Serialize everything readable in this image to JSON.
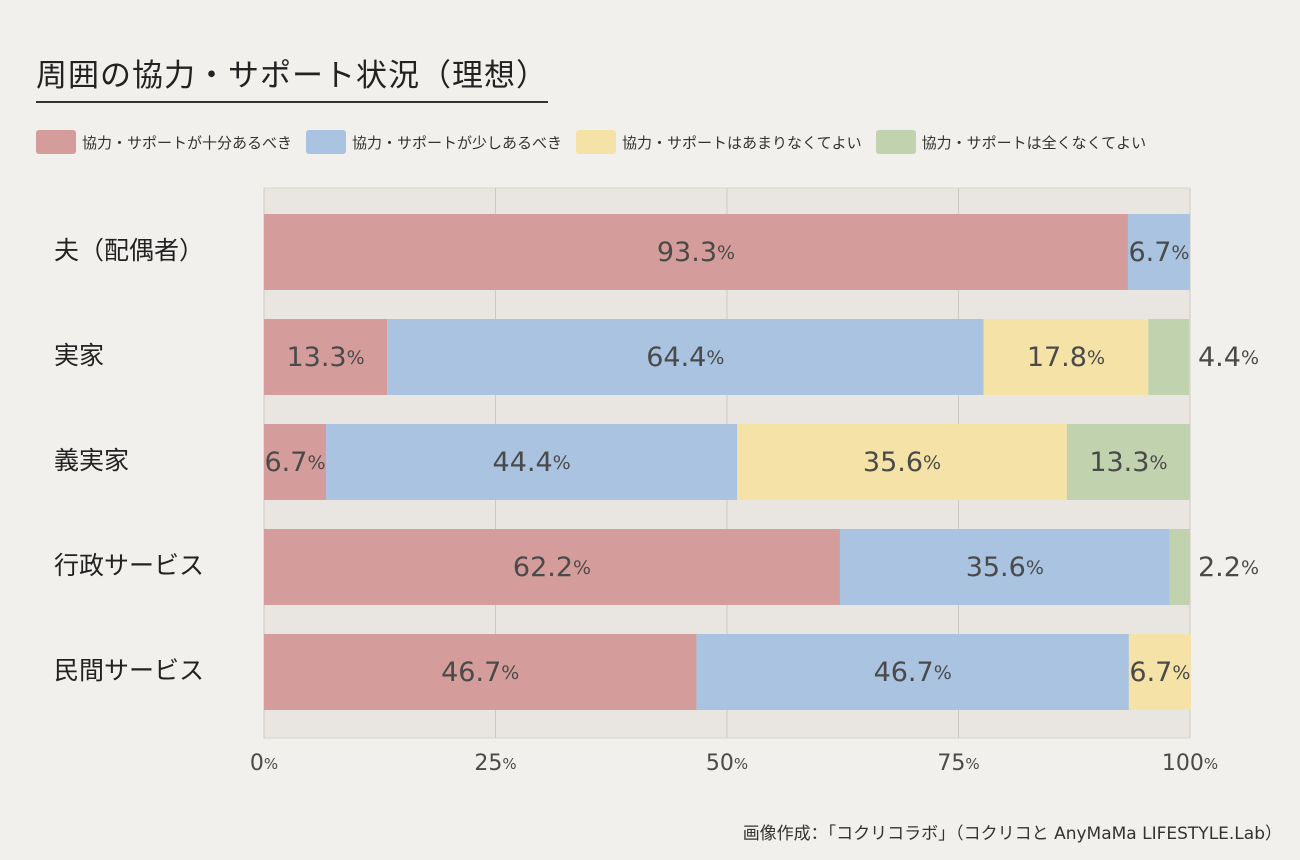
{
  "title": "周囲の協力・サポート状況（理想）",
  "credit": "画像作成：「コクリコラボ」（コクリコと AnyMaMa LIFESTYLE.Lab）",
  "chart_data": {
    "type": "bar",
    "orientation": "horizontal",
    "stacked": true,
    "unit": "%",
    "categories": [
      "夫（配偶者）",
      "実家",
      "義実家",
      "行政サービス",
      "民間サービス"
    ],
    "series": [
      {
        "name": "協力・サポートが十分あるべき",
        "color": "#d49d9b",
        "values": [
          93.3,
          13.3,
          6.7,
          62.2,
          46.7
        ]
      },
      {
        "name": "協力・サポートが少しあるべき",
        "color": "#a9c3e1",
        "values": [
          6.7,
          64.4,
          44.4,
          35.6,
          46.7
        ]
      },
      {
        "name": "協力・サポートはあまりなくてよい",
        "color": "#f5e2a6",
        "values": [
          0,
          17.8,
          35.6,
          0,
          6.7
        ]
      },
      {
        "name": "協力・サポートは全くなくてよい",
        "color": "#c0d3ae",
        "values": [
          0,
          4.4,
          13.3,
          2.2,
          0
        ]
      }
    ],
    "xlim": [
      0,
      100
    ],
    "xticks": [
      0,
      25,
      50,
      75,
      100
    ],
    "grid": true,
    "legend_position": "top"
  }
}
